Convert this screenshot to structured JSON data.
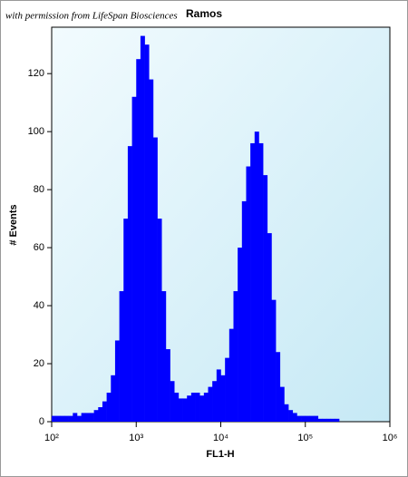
{
  "chart_data": {
    "type": "histogram",
    "title": "Ramos",
    "watermark": "with permission from LifeSpan Biosciences",
    "xlabel": "FL1-H",
    "ylabel": "# Events",
    "xscale": "log",
    "color": "#0000ff",
    "xlim": [
      100,
      1000000
    ],
    "ylim": [
      0,
      136
    ],
    "xticks": [
      {
        "value": 100,
        "label": "10²"
      },
      {
        "value": 1000,
        "label": "10³"
      },
      {
        "value": 10000,
        "label": "10⁴"
      },
      {
        "value": 100000,
        "label": "10⁵"
      },
      {
        "value": 1000000,
        "label": "10⁶"
      }
    ],
    "yticks": [
      0,
      20,
      40,
      60,
      80,
      100,
      120
    ],
    "bins": [
      100,
      112.2,
      125.9,
      141.3,
      158.5,
      177.8,
      199.5,
      223.9,
      251.2,
      281.8,
      316.2,
      354.8,
      398.1,
      446.7,
      501.2,
      562.3,
      631,
      707.9,
      794.3,
      891.3,
      1000,
      1122,
      1259,
      1413,
      1585,
      1778,
      1995,
      2239,
      2512,
      2818,
      3162,
      3548,
      3981,
      4467,
      5012,
      5623,
      6310,
      7079,
      7943,
      8913,
      10000,
      11220,
      12589,
      14125,
      15849,
      17783,
      19953,
      22387,
      25119,
      28184,
      31623,
      35481,
      39811,
      44668,
      50119,
      56234,
      63096,
      70795,
      79433,
      89125,
      100000,
      112202,
      125893,
      141254,
      158489,
      177828,
      199526,
      223872,
      251189,
      281838,
      316228,
      354813,
      398107,
      446684,
      501187,
      562341,
      630957,
      707946,
      794328,
      891251,
      1000000
    ],
    "values": [
      2,
      2,
      2,
      2,
      2,
      3,
      2,
      3,
      3,
      3,
      4,
      5,
      7,
      10,
      16,
      28,
      45,
      70,
      95,
      112,
      125,
      133,
      130,
      118,
      98,
      70,
      45,
      25,
      14,
      10,
      8,
      8,
      9,
      10,
      10,
      9,
      10,
      12,
      14,
      18,
      16,
      22,
      32,
      45,
      60,
      76,
      88,
      96,
      100,
      96,
      85,
      65,
      42,
      24,
      12,
      6,
      4,
      3,
      2,
      2,
      2,
      2,
      2,
      1,
      1,
      1,
      1,
      1,
      0,
      0,
      0,
      0,
      0,
      0,
      0,
      0,
      0,
      0,
      0,
      0
    ]
  }
}
